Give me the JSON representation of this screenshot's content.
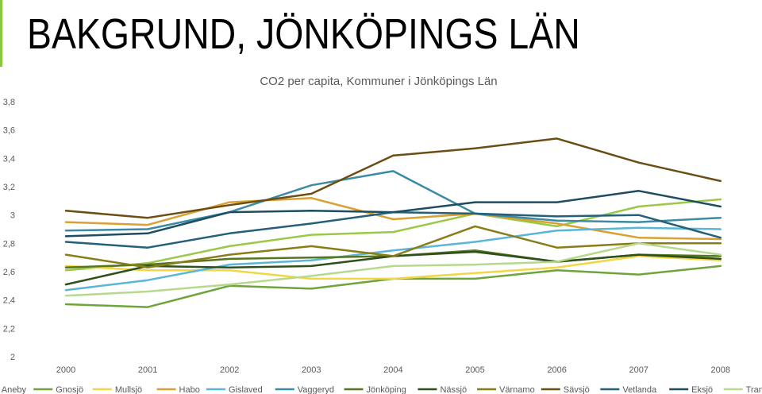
{
  "slide": {
    "title": "BAKGRUND, JÖNKÖPINGS LÄN",
    "accent_color": "#8dc63f"
  },
  "chart_data": {
    "type": "line",
    "title": "CO2 per capita, Kommuner i Jönköpings Län",
    "xlabel": "",
    "ylabel": "",
    "categories": [
      "2000",
      "2001",
      "2002",
      "2003",
      "2004",
      "2005",
      "2006",
      "2007",
      "2008"
    ],
    "ylim": [
      2,
      3.8
    ],
    "yticks": [
      "2",
      "2,2",
      "2,4",
      "2,6",
      "2,8",
      "3",
      "3,2",
      "3,4",
      "3,6",
      "3,8"
    ],
    "grid": false,
    "legend_position": "bottom",
    "series": [
      {
        "name": "Aneby",
        "color": "#9bc846",
        "values": [
          2.61,
          2.66,
          2.78,
          2.86,
          2.88,
          3.01,
          2.92,
          3.06,
          3.11
        ]
      },
      {
        "name": "Gnosjö",
        "color": "#6ea43c",
        "values": [
          2.37,
          2.35,
          2.5,
          2.48,
          2.55,
          2.55,
          2.61,
          2.58,
          2.64
        ]
      },
      {
        "name": "Mullsjö",
        "color": "#f2d644",
        "values": [
          2.64,
          2.61,
          2.61,
          2.55,
          2.55,
          2.59,
          2.63,
          2.71,
          2.68
        ]
      },
      {
        "name": "Habo",
        "color": "#d9a032",
        "values": [
          2.95,
          2.93,
          3.09,
          3.12,
          2.97,
          3.01,
          2.94,
          2.84,
          2.83
        ]
      },
      {
        "name": "Gislaved",
        "color": "#59b6d6",
        "values": [
          2.47,
          2.54,
          2.65,
          2.68,
          2.75,
          2.81,
          2.89,
          2.91,
          2.9
        ]
      },
      {
        "name": "Vaggeryd",
        "color": "#3b8ba5",
        "values": [
          2.89,
          2.9,
          3.02,
          3.21,
          3.31,
          3.01,
          2.96,
          2.95,
          2.98
        ]
      },
      {
        "name": "Jönköping",
        "color": "#55761e",
        "values": [
          2.63,
          2.65,
          2.69,
          2.7,
          2.71,
          2.75,
          2.67,
          2.72,
          2.71
        ]
      },
      {
        "name": "Nässjö",
        "color": "#2f4f1b",
        "values": [
          2.51,
          2.64,
          2.63,
          2.64,
          2.71,
          2.74,
          2.67,
          2.72,
          2.69
        ]
      },
      {
        "name": "Värnamo",
        "color": "#8a7d17",
        "values": [
          2.72,
          2.63,
          2.72,
          2.78,
          2.71,
          2.92,
          2.77,
          2.8,
          2.8
        ]
      },
      {
        "name": "Sävsjö",
        "color": "#6b4e14",
        "values": [
          3.03,
          2.98,
          3.07,
          3.15,
          3.42,
          3.47,
          3.54,
          3.37,
          3.24
        ]
      },
      {
        "name": "Vetlanda",
        "color": "#24607a",
        "values": [
          2.81,
          2.77,
          2.87,
          2.94,
          3.02,
          3.01,
          2.99,
          3.0,
          2.84
        ]
      },
      {
        "name": "Eksjö",
        "color": "#1d4d60",
        "values": [
          2.85,
          2.87,
          3.02,
          3.03,
          3.02,
          3.09,
          3.09,
          3.17,
          3.06
        ]
      },
      {
        "name": "Tranås",
        "color": "#b6d98c",
        "values": [
          2.43,
          2.46,
          2.51,
          2.57,
          2.64,
          2.65,
          2.67,
          2.8,
          2.72
        ]
      }
    ]
  }
}
